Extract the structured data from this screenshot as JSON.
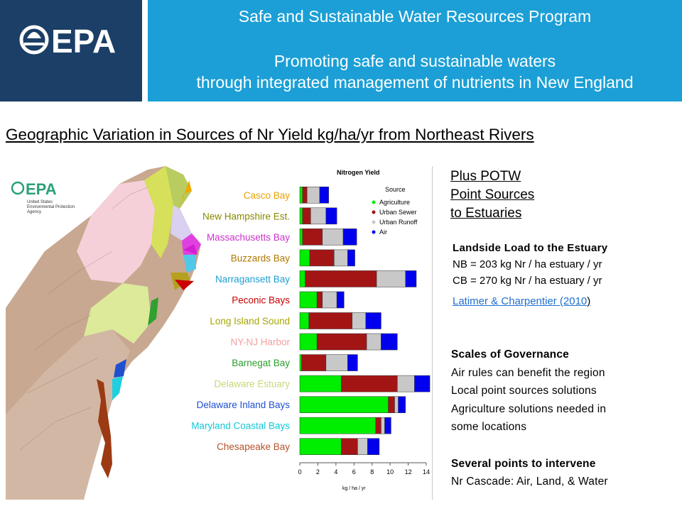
{
  "header": {
    "logo_text": "EPA",
    "program_title": "Safe and Sustainable Water Resources Program",
    "subtitle_line1": "Promoting safe and sustainable waters",
    "subtitle_line2": "through integrated management of nutrients in New England"
  },
  "slide_heading": "Geographic Variation in Sources of  Nr Yield kg/ha/yr  from  Northeast Rivers",
  "map": {
    "inset_logo_text": "EPA",
    "inset_logo_caption": [
      "United States",
      "Environmental Protection",
      "Agency"
    ]
  },
  "chart_data": {
    "type": "bar",
    "orientation": "horizontal",
    "stacked": true,
    "title": "Nitrogen Yield",
    "xlabel": "kg / ha / yr",
    "xlim": [
      0,
      14
    ],
    "xticks": [
      0,
      2,
      4,
      6,
      8,
      10,
      12,
      14
    ],
    "legend_title": "Source",
    "legend_position": "top-right",
    "categories": [
      "Casco Bay",
      "New Hampshire Est.",
      "Massachusetts Bay",
      "Buzzards Bay",
      "Narragansett Bay",
      "Peconic Bays",
      "Long Island Sound",
      "NY-NJ Harbor",
      "Barnegat Bay",
      "Delaware Estuary",
      "Delaware Inland Bays",
      "Maryland Coastal Bays",
      "Chesapeake Bay"
    ],
    "category_colors": [
      "#e8a200",
      "#8a8a00",
      "#cc33cc",
      "#b07800",
      "#1f9ed0",
      "#cc0000",
      "#a6a600",
      "#f2a0a0",
      "#2d9e2d",
      "#c9d77a",
      "#1f4fd0",
      "#12c8d8",
      "#b5532a"
    ],
    "series": [
      {
        "name": "Agriculture",
        "color": "#00ee00",
        "values": [
          0.3,
          0.3,
          0.3,
          1.1,
          0.6,
          1.9,
          1.0,
          1.9,
          0.2,
          4.6,
          9.8,
          8.4,
          4.6
        ]
      },
      {
        "name": "Urban Sewer",
        "color": "#a31515",
        "values": [
          0.5,
          0.9,
          2.2,
          2.7,
          7.9,
          0.6,
          4.8,
          5.5,
          2.7,
          6.2,
          0.7,
          0.6,
          1.8
        ]
      },
      {
        "name": "Urban Runoff",
        "color": "#c8c8c8",
        "values": [
          1.4,
          1.7,
          2.3,
          1.5,
          3.2,
          1.6,
          1.5,
          1.6,
          2.4,
          1.9,
          0.4,
          0.4,
          1.1
        ]
      },
      {
        "name": "Air",
        "color": "#0000ee",
        "values": [
          1.0,
          1.2,
          1.5,
          0.8,
          1.2,
          0.8,
          1.7,
          1.8,
          1.1,
          1.7,
          0.8,
          0.7,
          1.3
        ]
      }
    ]
  },
  "potw_note": [
    "Plus POTW",
    "Point Sources",
    "to Estuaries"
  ],
  "landside": {
    "heading": "Landside  Load to the Estuary",
    "nb": "NB = 203 kg Nr / ha estuary / yr",
    "cb": "CB = 270 kg Nr / ha estuary / yr",
    "citation": "Latimer & Charpentier (2010",
    "citation_close": ")"
  },
  "governance": {
    "heading": "Scales of Governance",
    "items": [
      "Air rules can benefit the region",
      "Local point sources solutions",
      "Agriculture solutions needed in",
      "some locations"
    ],
    "heading2": "Several points to intervene",
    "cascade": "Nr  Cascade: Air, Land, & Water"
  },
  "colors": {
    "header_dark": "#1b3f66",
    "header_blue": "#1b9fd6",
    "link": "#1f6fd0"
  }
}
